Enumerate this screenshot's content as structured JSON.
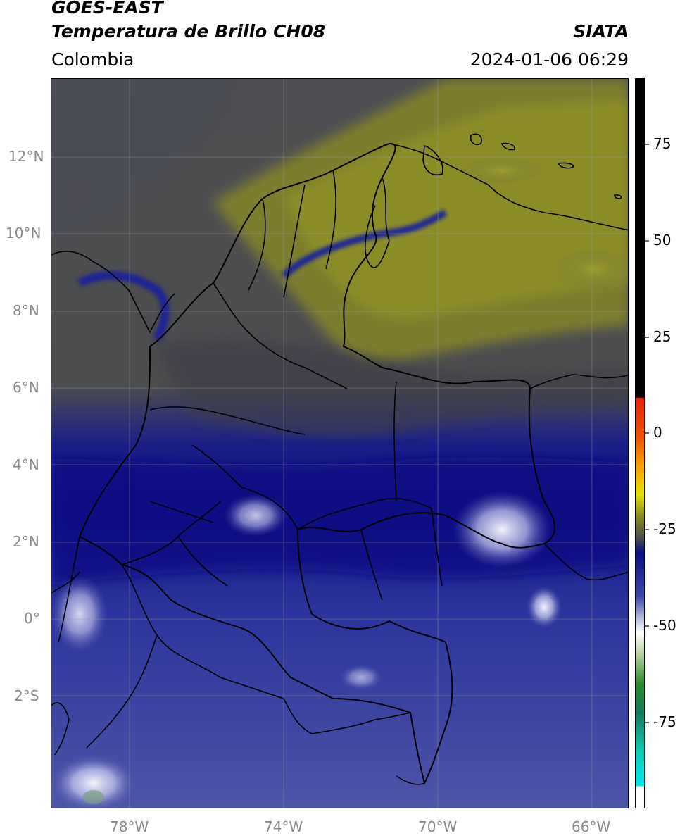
{
  "header": {
    "satellite": "GOES-EAST",
    "product": "Temperatura de Brillo CH08",
    "region": "Colombia",
    "source": "SIATA",
    "datetime": "2024-01-06 06:29"
  },
  "map": {
    "lat_labels": [
      "12°N",
      "10°N",
      "8°N",
      "6°N",
      "4°N",
      "2°N",
      "0°",
      "2°S"
    ],
    "lon_labels": [
      "78°W",
      "74°W",
      "70°W",
      "66°W"
    ]
  },
  "colorbar": {
    "ticks": [
      "75",
      "50",
      "25",
      "0",
      "-25",
      "-50",
      "-75"
    ],
    "colors": {
      "black": "#000000",
      "red": "#e8200c",
      "orange": "#f5a000",
      "yellow": "#e8e000",
      "olive": "#8a8a22",
      "gray": "#4d4d4d",
      "navy": "#0a0f85",
      "blue": "#3c48a6",
      "lavender": "#b6bcdc",
      "white": "#ffffff",
      "green": "#2a8c2a",
      "teal": "#12c8b0",
      "cyan": "#00e8ee"
    }
  }
}
